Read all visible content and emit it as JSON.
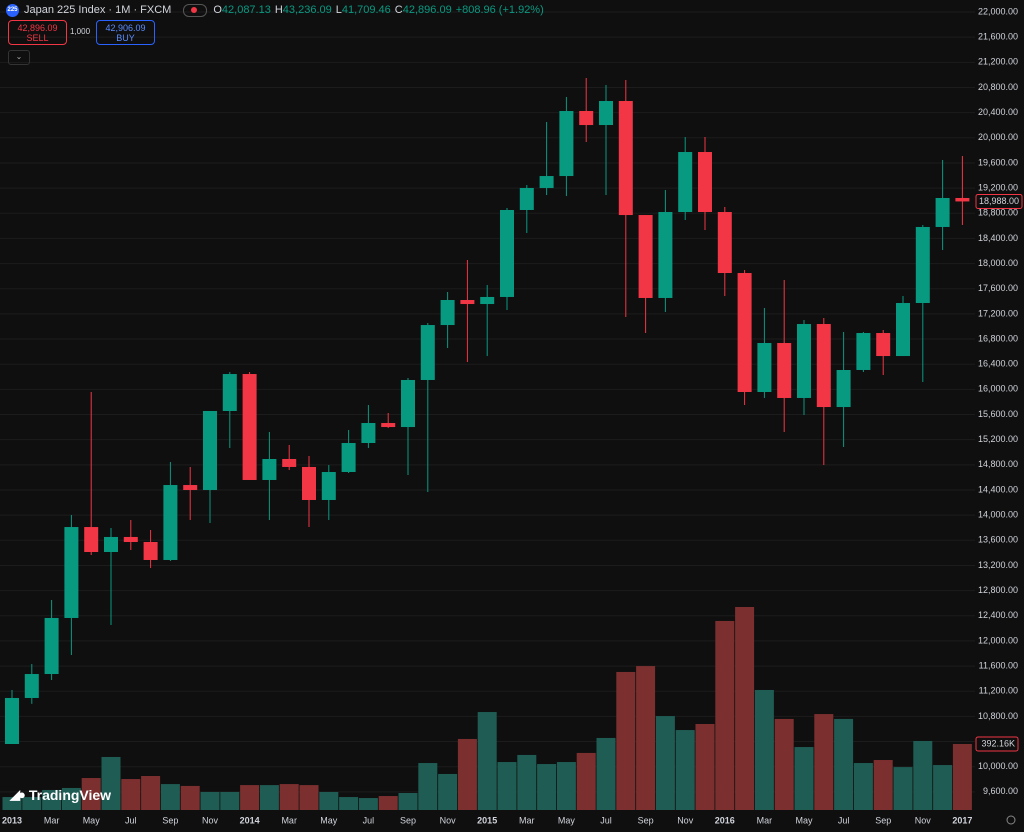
{
  "header": {
    "logo": "225",
    "title": "Japan 225 Index · 1M · FXCM",
    "ohlc": [
      {
        "key": "O",
        "value": "42,087.13"
      },
      {
        "key": "H",
        "value": "43,236.09"
      },
      {
        "key": "L",
        "value": "41,709.46"
      },
      {
        "key": "C",
        "value": "42,896.09"
      }
    ],
    "change": "+808.96 (+1.92%)"
  },
  "trade": {
    "sell_price": "42,896.09",
    "sell": "SELL",
    "quantity": "1,000",
    "buy_price": "42,906.09",
    "buy": "BUY"
  },
  "brand": "TradingView",
  "chart_data": {
    "type": "candlestick",
    "x": [
      "2013",
      null,
      "Mar",
      null,
      "May",
      null,
      "Jul",
      null,
      "Sep",
      null,
      "Nov",
      null,
      "2014",
      null,
      "Mar",
      null,
      "May",
      null,
      "Jul",
      null,
      "Sep",
      null,
      "Nov",
      null,
      "2015",
      null,
      "Mar",
      null,
      "May",
      null,
      "Jul",
      null,
      "Sep",
      null,
      "Nov",
      null,
      "2016",
      null,
      "Mar",
      null,
      "May",
      null,
      "Jul",
      null,
      "Sep",
      null,
      "Nov",
      null,
      "2017"
    ],
    "open": [
      10361,
      11093,
      11474,
      12365,
      13811,
      13414,
      13653,
      13573,
      13287,
      14479,
      14400,
      15656,
      16244,
      14559,
      14893,
      14766,
      14241,
      14686,
      15147,
      15465,
      15401,
      16149,
      17023,
      17421,
      17357,
      17469,
      18852,
      19202,
      19392,
      20426,
      20203,
      20585,
      18772,
      17453,
      18820,
      19774,
      18820,
      17850,
      15958,
      16737,
      15863,
      17039,
      15719,
      16308,
      16896,
      16530,
      17373,
      18582,
      19043
    ],
    "high": [
      11220,
      11633,
      12651,
      14002,
      15958,
      13796,
      13923,
      13764,
      14845,
      14766,
      15656,
      16276,
      16276,
      15322,
      15116,
      14940,
      14797,
      15354,
      15751,
      15624,
      16181,
      17055,
      17548,
      18057,
      17659,
      18884,
      19249,
      20251,
      20649,
      20951,
      20840,
      20919,
      18772,
      19170,
      20012,
      20012,
      18900,
      17898,
      17294,
      17739,
      17103,
      17135,
      16912,
      16912,
      16944,
      17484,
      18614,
      19647,
      19710
    ],
    "low": [
      10361,
      11000,
      11379,
      11776,
      13366,
      12254,
      13446,
      13160,
      13271,
      13923,
      13875,
      15068,
      14559,
      13923,
      14718,
      13811,
      13923,
      14670,
      15068,
      15386,
      14638,
      14368,
      16658,
      16435,
      16530,
      17262,
      18486,
      19090,
      19074,
      19933,
      19090,
      17151,
      16896,
      17230,
      18693,
      18534,
      17484,
      15751,
      15863,
      15322,
      15592,
      14797,
      15084,
      16276,
      16228,
      16530,
      16117,
      18216,
      18614
    ],
    "close": [
      11093,
      11474,
      12365,
      13811,
      13414,
      13653,
      13573,
      13287,
      14479,
      14400,
      15656,
      16244,
      14559,
      14893,
      14766,
      14241,
      14686,
      15147,
      15465,
      15401,
      16149,
      17023,
      17421,
      17357,
      17469,
      18852,
      19202,
      19392,
      20426,
      20203,
      20585,
      18772,
      17453,
      18820,
      19774,
      18820,
      17850,
      15958,
      16737,
      15863,
      17039,
      15719,
      16308,
      16896,
      16530,
      17373,
      18582,
      19043,
      18988
    ],
    "volume": [
      77,
      77,
      119,
      131,
      190,
      315,
      184,
      202,
      154,
      143,
      107,
      107,
      148,
      148,
      154,
      148,
      107,
      77,
      71,
      83,
      101,
      279,
      214,
      422,
      582,
      285,
      327,
      273,
      285,
      339,
      428,
      820,
      855,
      558,
      475,
      511,
      1123,
      1206,
      713,
      541,
      374,
      570,
      541,
      279,
      297,
      255,
      410,
      267,
      392.16
    ],
    "up_color": "#089981",
    "down_color": "#f23645",
    "volume_up_color": "#1f5c54",
    "volume_down_color": "#7c2f2f",
    "ylim": [
      8962,
      22191
    ],
    "volume_ylim": [
      0,
      4800
    ],
    "grid": true,
    "yticks": [
      {
        "value": 9600,
        "label": "9,600.00"
      },
      {
        "value": 10000,
        "label": "10,000.00"
      },
      {
        "value": 10400,
        "label": "10,400.00"
      },
      {
        "value": 10800,
        "label": "10,800.00"
      },
      {
        "value": 11200,
        "label": "11,200.00"
      },
      {
        "value": 11600,
        "label": "11,600.00"
      },
      {
        "value": 12000,
        "label": "12,000.00"
      },
      {
        "value": 12400,
        "label": "12,400.00"
      },
      {
        "value": 12800,
        "label": "12,800.00"
      },
      {
        "value": 13200,
        "label": "13,200.00"
      },
      {
        "value": 13600,
        "label": "13,600.00"
      },
      {
        "value": 14000,
        "label": "14,000.00"
      },
      {
        "value": 14400,
        "label": "14,400.00"
      },
      {
        "value": 14800,
        "label": "14,800.00"
      },
      {
        "value": 15200,
        "label": "15,200.00"
      },
      {
        "value": 15600,
        "label": "15,600.00"
      },
      {
        "value": 16000,
        "label": "16,000.00"
      },
      {
        "value": 16400,
        "label": "16,400.00"
      },
      {
        "value": 16800,
        "label": "16,800.00"
      },
      {
        "value": 17200,
        "label": "17,200.00"
      },
      {
        "value": 17600,
        "label": "17,600.00"
      },
      {
        "value": 18000,
        "label": "18,000.00"
      },
      {
        "value": 18400,
        "label": "18,400.00"
      },
      {
        "value": 18800,
        "label": "18,800.00"
      },
      {
        "value": 19200,
        "label": "19,200.00"
      },
      {
        "value": 19600,
        "label": "19,600.00"
      },
      {
        "value": 20000,
        "label": "20,000.00"
      },
      {
        "value": 20400,
        "label": "20,400.00"
      },
      {
        "value": 20800,
        "label": "20,800.00"
      },
      {
        "value": 21200,
        "label": "21,200.00"
      },
      {
        "value": 21600,
        "label": "21,600.00"
      },
      {
        "value": 22000,
        "label": "22,000.00"
      }
    ],
    "price_label": {
      "value": 18988,
      "label": "18,988.00"
    },
    "volume_label": {
      "value": 392.16,
      "label": "392.16K"
    }
  }
}
